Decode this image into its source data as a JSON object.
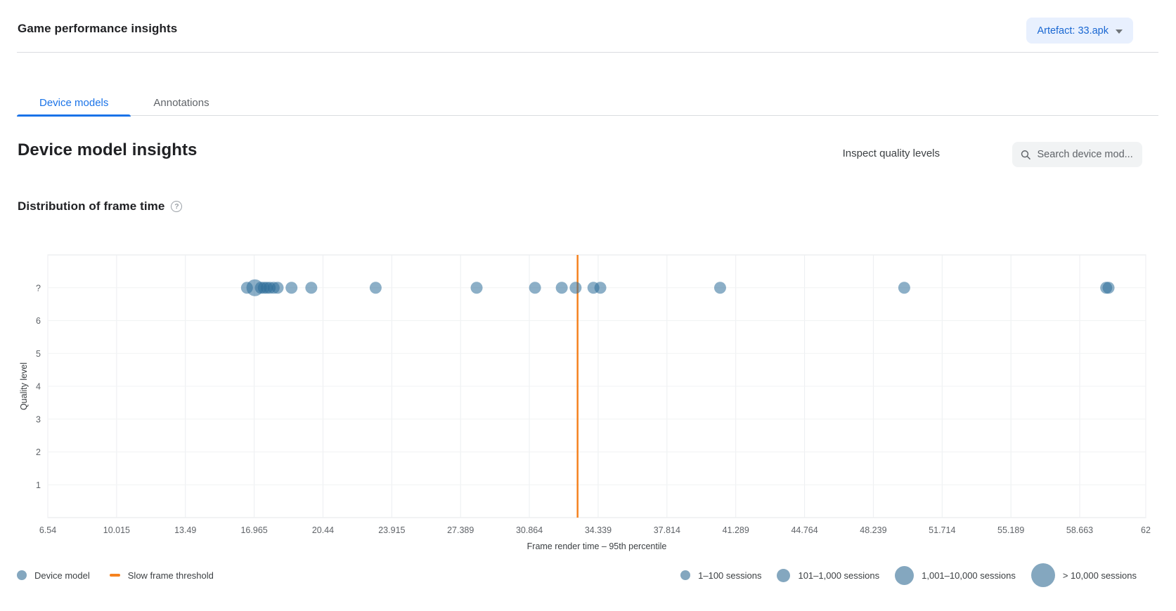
{
  "header": {
    "title": "Game performance insights",
    "artefact_button_label": "Artefact: 33.apk"
  },
  "tabs": [
    {
      "label": "Device models",
      "active": true
    },
    {
      "label": "Annotations",
      "active": false
    }
  ],
  "section": {
    "title": "Device model insights",
    "inspect_link": "Inspect quality levels",
    "search_placeholder": "Search device mod..."
  },
  "chart_section": {
    "title": "Distribution of frame time",
    "help_glyph": "?"
  },
  "chart_data": {
    "type": "scatter",
    "title": "Distribution of frame time",
    "xlabel": "Frame render time – 95th percentile",
    "ylabel": "Quality level",
    "xlim": [
      6.54,
      62
    ],
    "x_ticks": [
      6.54,
      10.015,
      13.49,
      16.965,
      20.44,
      23.915,
      27.389,
      30.864,
      34.339,
      37.814,
      41.289,
      44.764,
      48.239,
      51.714,
      55.189,
      58.663,
      62
    ],
    "x_tick_labels": [
      "6.54",
      "10.015",
      "13.49",
      "16.965",
      "20.44",
      "23.915",
      "27.389",
      "30.864",
      "34.339",
      "37.814",
      "41.289",
      "44.764",
      "48.239",
      "51.714",
      "55.189",
      "58.663",
      "62"
    ],
    "y_categories": [
      "?",
      "6",
      "5",
      "4",
      "3",
      "2",
      "1"
    ],
    "grid": true,
    "legend_position": "bottom",
    "threshold": {
      "label": "Slow frame threshold",
      "value": 33.3,
      "color": "#f5821f"
    },
    "point_color": "#2e6e99",
    "point_opacity": 0.55,
    "session_radius": {
      "1-100": 8.5,
      "101-1000": 12,
      "1001-10000": 16,
      ">10000": 20
    },
    "points": [
      {
        "x": 16.6,
        "quality": "?",
        "sessions": "1-100"
      },
      {
        "x": 17.0,
        "quality": "?",
        "sessions": "101-1000"
      },
      {
        "x": 17.3,
        "quality": "?",
        "sessions": "1-100"
      },
      {
        "x": 17.45,
        "quality": "?",
        "sessions": "1-100"
      },
      {
        "x": 17.6,
        "quality": "?",
        "sessions": "1-100"
      },
      {
        "x": 17.75,
        "quality": "?",
        "sessions": "1-100"
      },
      {
        "x": 17.95,
        "quality": "?",
        "sessions": "1-100"
      },
      {
        "x": 18.15,
        "quality": "?",
        "sessions": "1-100"
      },
      {
        "x": 18.85,
        "quality": "?",
        "sessions": "1-100"
      },
      {
        "x": 19.85,
        "quality": "?",
        "sessions": "1-100"
      },
      {
        "x": 23.1,
        "quality": "?",
        "sessions": "1-100"
      },
      {
        "x": 28.2,
        "quality": "?",
        "sessions": "1-100"
      },
      {
        "x": 31.15,
        "quality": "?",
        "sessions": "1-100"
      },
      {
        "x": 32.5,
        "quality": "?",
        "sessions": "1-100"
      },
      {
        "x": 33.2,
        "quality": "?",
        "sessions": "1-100"
      },
      {
        "x": 34.1,
        "quality": "?",
        "sessions": "1-100"
      },
      {
        "x": 34.45,
        "quality": "?",
        "sessions": "1-100"
      },
      {
        "x": 40.5,
        "quality": "?",
        "sessions": "1-100"
      },
      {
        "x": 49.8,
        "quality": "?",
        "sessions": "1-100"
      },
      {
        "x": 60.0,
        "quality": "?",
        "sessions": "1-100"
      },
      {
        "x": 60.12,
        "quality": "?",
        "sessions": "1-100"
      }
    ]
  },
  "legend": {
    "device_model": "Device model",
    "threshold": "Slow frame threshold",
    "sizes": [
      {
        "label": "1–100 sessions"
      },
      {
        "label": "101–1,000 sessions"
      },
      {
        "label": "1,001–10,000 sessions"
      },
      {
        "label": "> 10,000 sessions"
      }
    ]
  },
  "colors": {
    "accent_blue": "#1a73e8",
    "artefact_bg": "#e8f0fe",
    "threshold_orange": "#f5821f",
    "dot_blue": "#2e6e99",
    "legend_dot": "#84a7bf",
    "text_secondary": "#5f6368"
  }
}
